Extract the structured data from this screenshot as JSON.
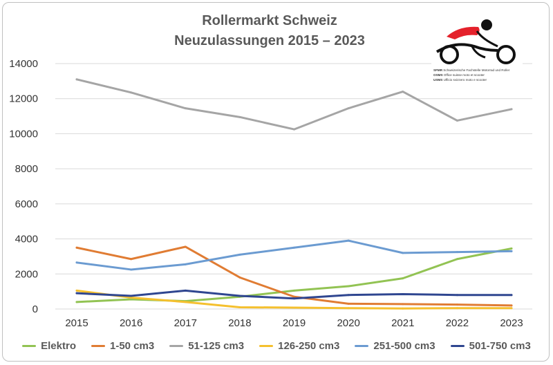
{
  "chart_data": {
    "type": "line",
    "title": "Rollermarkt Schweiz",
    "subtitle": "Neuzulassungen 2015 – 2023",
    "x": [
      "2015",
      "2016",
      "2017",
      "2018",
      "2019",
      "2020",
      "2021",
      "2022",
      "2023"
    ],
    "ylim": [
      0,
      14000
    ],
    "yticks": [
      0,
      2000,
      4000,
      6000,
      8000,
      10000,
      12000,
      14000
    ],
    "grid": true,
    "legend_position": "bottom",
    "series": [
      {
        "name": "Elektro",
        "color": "#92c353",
        "values": [
          400,
          550,
          450,
          700,
          1050,
          1300,
          1750,
          2850,
          3450
        ]
      },
      {
        "name": "1-50 cm3",
        "color": "#e07c33",
        "values": [
          3500,
          2850,
          3550,
          1800,
          700,
          300,
          280,
          250,
          200
        ]
      },
      {
        "name": "51-125 cm3",
        "color": "#a5a5a5",
        "values": [
          13100,
          12350,
          11450,
          10950,
          10250,
          11450,
          12400,
          10750,
          11400
        ]
      },
      {
        "name": "126-250 cm3",
        "color": "#f5c02e",
        "values": [
          1050,
          650,
          400,
          100,
          80,
          50,
          30,
          50,
          50
        ]
      },
      {
        "name": "251-500 cm3",
        "color": "#6b9bd1",
        "values": [
          2650,
          2250,
          2550,
          3100,
          3500,
          3900,
          3200,
          3250,
          3300
        ]
      },
      {
        "name": "501-750 cm3",
        "color": "#2f4690",
        "values": [
          900,
          750,
          1050,
          750,
          600,
          800,
          850,
          800,
          800
        ]
      }
    ]
  },
  "logo": {
    "name": "sfmr-logo",
    "lines": [
      {
        "abbr": "SFMR",
        "text": "Schweizerische Fachstelle Motorrad und Roller"
      },
      {
        "abbr": "OSMS",
        "text": "Office suisse moto et scooter"
      },
      {
        "abbr": "USMS",
        "text": "Ufficio svizzero moto e scooter"
      }
    ]
  }
}
